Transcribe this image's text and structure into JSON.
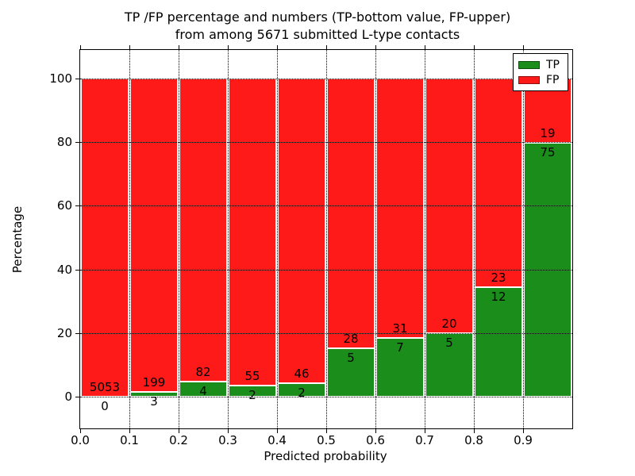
{
  "title": {
    "line1": "TP /FP percentage and numbers (TP-bottom value, FP-upper)",
    "line2": "from among 5671 submitted L-type contacts"
  },
  "chart_data": {
    "type": "bar",
    "stacked": true,
    "normalized_to_percent": true,
    "total_contacts": 5671,
    "xlabel": "Predicted probability",
    "ylabel": "Percentage",
    "bins": [
      [
        0.0,
        0.1
      ],
      [
        0.1,
        0.2
      ],
      [
        0.2,
        0.3
      ],
      [
        0.3,
        0.4
      ],
      [
        0.4,
        0.5
      ],
      [
        0.5,
        0.6
      ],
      [
        0.6,
        0.7
      ],
      [
        0.7,
        0.8
      ],
      [
        0.8,
        0.9
      ],
      [
        0.9,
        1.0
      ]
    ],
    "series": [
      {
        "name": "TP",
        "color": "#1A8D1A",
        "counts": [
          0,
          3,
          4,
          2,
          2,
          5,
          7,
          5,
          12,
          75
        ]
      },
      {
        "name": "FP",
        "color": "#FF1A1A",
        "counts": [
          5053,
          199,
          82,
          55,
          46,
          28,
          31,
          20,
          23,
          19
        ]
      }
    ],
    "tp_percent_per_bin": [
      0.0,
      1.49,
      4.65,
      3.51,
      4.17,
      15.15,
      18.42,
      20.0,
      34.29,
      79.79
    ],
    "x_ticks": [
      {
        "value": 0.0,
        "label": "0.0"
      },
      {
        "value": 0.1,
        "label": "0.1"
      },
      {
        "value": 0.2,
        "label": "0.2"
      },
      {
        "value": 0.3,
        "label": "0.3"
      },
      {
        "value": 0.4,
        "label": "0.4"
      },
      {
        "value": 0.5,
        "label": "0.5"
      },
      {
        "value": 0.6,
        "label": "0.6"
      },
      {
        "value": 0.7,
        "label": "0.7"
      },
      {
        "value": 0.8,
        "label": "0.8"
      },
      {
        "value": 0.9,
        "label": "0.9"
      }
    ],
    "y_ticks": [
      0,
      20,
      40,
      60,
      80,
      100
    ],
    "xlim": [
      0.0,
      1.0
    ],
    "ylim": [
      -10,
      109
    ],
    "grid": "dotted",
    "grid_over_bars": true,
    "legend": {
      "position": "upper right",
      "entries": [
        {
          "label": "TP",
          "color": "#1A8D1A"
        },
        {
          "label": "FP",
          "color": "#FF1A1A"
        }
      ]
    }
  }
}
